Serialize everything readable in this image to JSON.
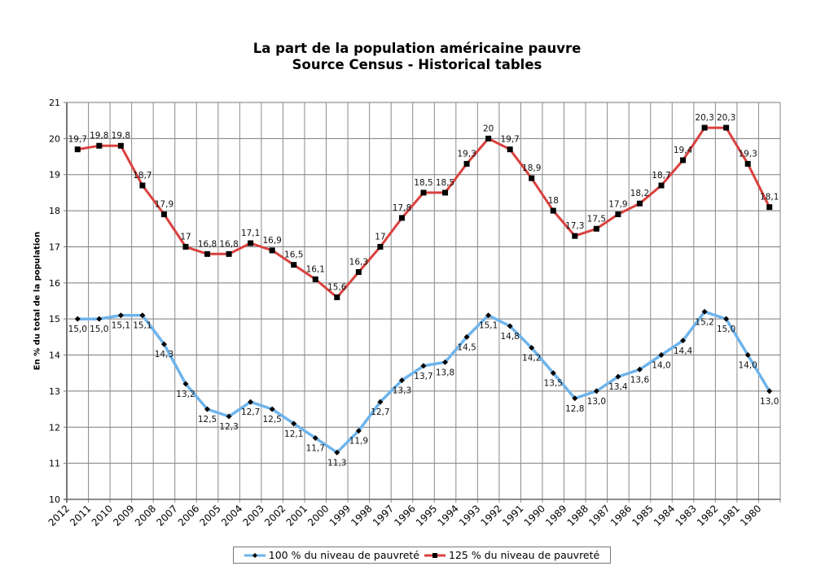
{
  "chart_data": {
    "type": "line",
    "title": "La part de la population américaine pauvre",
    "subtitle": "Source Census - Historical tables",
    "xlabel": "",
    "ylabel": "En % du total de la population",
    "ylim": [
      10,
      21
    ],
    "yticks": [
      "10",
      "11",
      "12",
      "13",
      "14",
      "15",
      "16",
      "17",
      "18",
      "19",
      "20",
      "21"
    ],
    "grid": true,
    "legend_position": "bottom",
    "categories": [
      "2012",
      "2011",
      "2010",
      "2009",
      "2008",
      "2007",
      "2006",
      "2005",
      "2004",
      "2003",
      "2002",
      "2001",
      "2000",
      "1999",
      "1998",
      "1997",
      "1996",
      "1995",
      "1994",
      "1993",
      "1992",
      "1991",
      "1990",
      "1989",
      "1988",
      "1987",
      "1986",
      "1985",
      "1984",
      "1983",
      "1982",
      "1981",
      "1980"
    ],
    "series": [
      {
        "name": "100 % du niveau de pauvreté",
        "color": "#6eb4ec",
        "marker": "diamond",
        "values": [
          15.0,
          15.0,
          15.1,
          15.1,
          14.3,
          13.2,
          12.5,
          12.3,
          12.7,
          12.5,
          12.1,
          11.7,
          11.3,
          11.9,
          12.7,
          13.3,
          13.7,
          13.8,
          14.5,
          15.1,
          14.8,
          14.2,
          13.5,
          12.8,
          13.0,
          13.4,
          13.6,
          14.0,
          14.4,
          15.2,
          15.0,
          14.0,
          13.0
        ],
        "labels": [
          "15,0",
          "15,0",
          "15,1",
          "15,1",
          "14,3",
          "13,2",
          "12,5",
          "12,3",
          "12,7",
          "12,5",
          "12,1",
          "11,7",
          "11,3",
          "11,9",
          "12,7",
          "13,3",
          "13,7",
          "13,8",
          "14,5",
          "15,1",
          "14,8",
          "14,2",
          "13,5",
          "12,8",
          "13,0",
          "13,4",
          "13,6",
          "14,0",
          "14,4",
          "15,2",
          "15,0",
          "14,0",
          "13,0"
        ],
        "label_position": "below"
      },
      {
        "name": "125 % du niveau de pauvreté",
        "color": "#d9413e",
        "marker": "square",
        "values": [
          19.7,
          19.8,
          19.8,
          18.7,
          17.9,
          17,
          16.8,
          16.8,
          17.1,
          16.9,
          16.5,
          16.1,
          15.6,
          16.3,
          17,
          17.8,
          18.5,
          18.5,
          19.3,
          20,
          19.7,
          18.9,
          18,
          17.3,
          17.5,
          17.9,
          18.2,
          18.7,
          19.4,
          20.3,
          20.3,
          19.3,
          18.1
        ],
        "labels": [
          "19,7",
          "19,8",
          "19,8",
          "18,7",
          "17,9",
          "17",
          "16,8",
          "16,8",
          "17,1",
          "16,9",
          "16,5",
          "16,1",
          "15,6",
          "16,3",
          "17",
          "17,8",
          "18,5",
          "18,5",
          "19,3",
          "20",
          "19,7",
          "18,9",
          "18",
          "17,3",
          "17,5",
          "17,9",
          "18,2",
          "18,7",
          "19,4",
          "20,3",
          "20,3",
          "19,3",
          "18,1"
        ],
        "label_position": "above"
      }
    ]
  }
}
